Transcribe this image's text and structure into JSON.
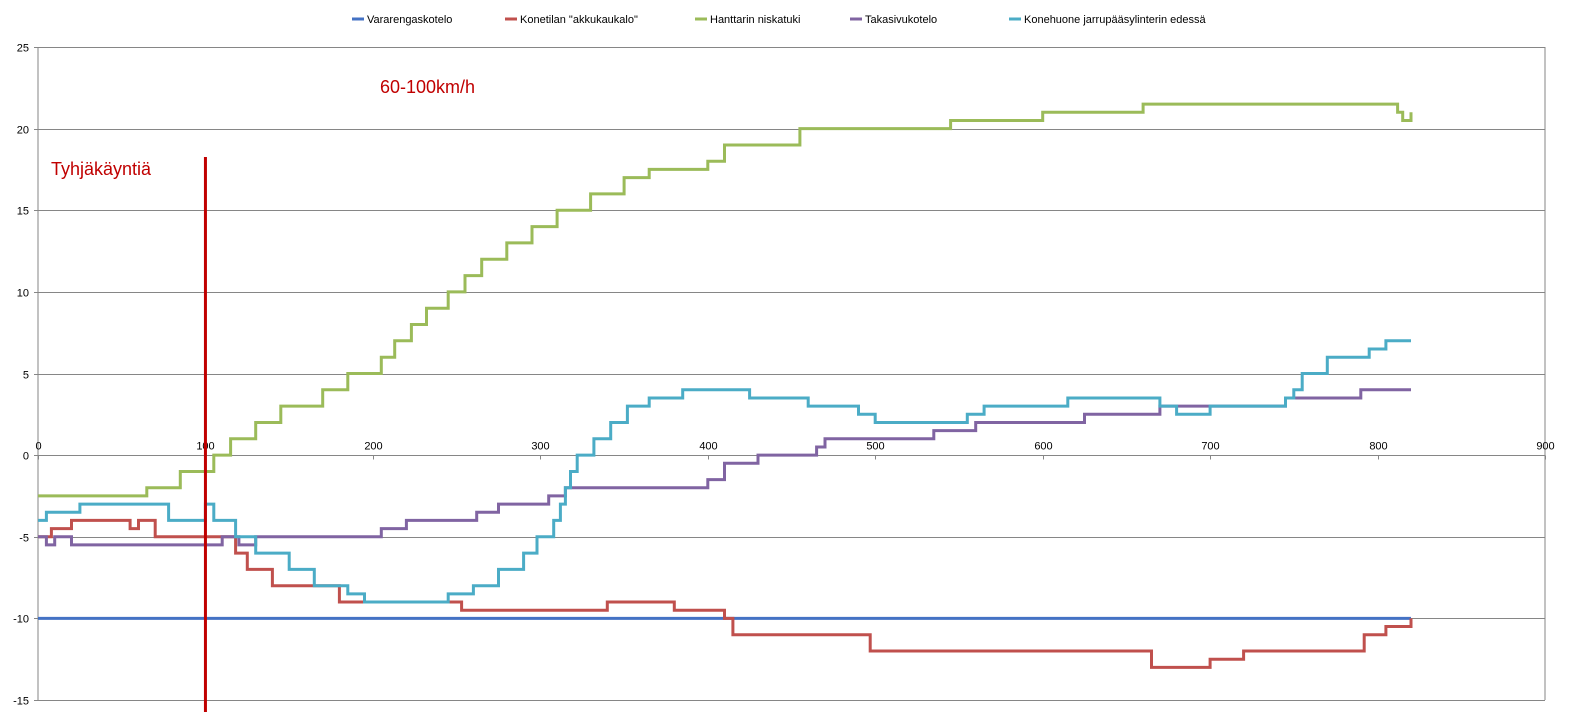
{
  "chart_data": {
    "type": "line",
    "title": "",
    "xlabel": "",
    "ylabel": "",
    "xlim": [
      0,
      900
    ],
    "ylim": [
      -15,
      25
    ],
    "x_ticks": [
      0,
      100,
      200,
      300,
      400,
      500,
      600,
      700,
      800,
      900
    ],
    "y_ticks": [
      -15,
      -10,
      -5,
      0,
      5,
      10,
      15,
      20,
      25
    ],
    "grid": "horizontal",
    "legend_position": "top",
    "annotations": [
      {
        "id": "idle",
        "text": "Tyhjäkäyntiä",
        "color": "#C00000"
      },
      {
        "id": "speed",
        "text": "60-100km/h",
        "color": "#C00000"
      }
    ],
    "vertical_marker": {
      "x": 100,
      "color": "#C00000"
    },
    "series": [
      {
        "name": "Vararengaskotelo",
        "color": "#4472C4",
        "points": [
          [
            0,
            -10
          ],
          [
            820,
            -10
          ]
        ]
      },
      {
        "name": "Konetilan \"akkukaukalo\"",
        "color": "#C0504D",
        "points": [
          [
            0,
            -5
          ],
          [
            5,
            -5
          ],
          [
            8,
            -4.5
          ],
          [
            20,
            -4
          ],
          [
            50,
            -4
          ],
          [
            55,
            -4.5
          ],
          [
            60,
            -4
          ],
          [
            65,
            -4
          ],
          [
            70,
            -5
          ],
          [
            110,
            -5
          ],
          [
            118,
            -6
          ],
          [
            120,
            -6
          ],
          [
            125,
            -7
          ],
          [
            135,
            -7
          ],
          [
            140,
            -8
          ],
          [
            150,
            -8
          ],
          [
            155,
            -8
          ],
          [
            175,
            -8
          ],
          [
            180,
            -9
          ],
          [
            250,
            -9
          ],
          [
            253,
            -9.5
          ],
          [
            320,
            -9.5
          ],
          [
            340,
            -9
          ],
          [
            380,
            -9.5
          ],
          [
            410,
            -10
          ],
          [
            415,
            -11
          ],
          [
            495,
            -11
          ],
          [
            497,
            -12
          ],
          [
            660,
            -12
          ],
          [
            665,
            -13
          ],
          [
            695,
            -13
          ],
          [
            700,
            -12.5
          ],
          [
            720,
            -12
          ],
          [
            790,
            -12
          ],
          [
            792,
            -11
          ],
          [
            805,
            -10.5
          ],
          [
            820,
            -10
          ]
        ]
      },
      {
        "name": "Hanttarin niskatuki",
        "color": "#9BBB59",
        "points": [
          [
            0,
            -2.5
          ],
          [
            60,
            -2.5
          ],
          [
            65,
            -2
          ],
          [
            80,
            -2
          ],
          [
            85,
            -1
          ],
          [
            100,
            -1
          ],
          [
            105,
            0
          ],
          [
            110,
            0
          ],
          [
            115,
            1
          ],
          [
            125,
            1
          ],
          [
            130,
            2
          ],
          [
            140,
            2
          ],
          [
            145,
            3
          ],
          [
            165,
            3
          ],
          [
            170,
            4
          ],
          [
            180,
            4
          ],
          [
            185,
            5
          ],
          [
            200,
            5
          ],
          [
            205,
            6
          ],
          [
            210,
            6
          ],
          [
            213,
            7
          ],
          [
            220,
            7
          ],
          [
            223,
            8
          ],
          [
            228,
            8
          ],
          [
            232,
            9
          ],
          [
            240,
            9
          ],
          [
            245,
            10
          ],
          [
            250,
            10
          ],
          [
            255,
            11
          ],
          [
            260,
            11
          ],
          [
            265,
            12
          ],
          [
            275,
            12
          ],
          [
            280,
            13
          ],
          [
            290,
            13
          ],
          [
            295,
            14
          ],
          [
            305,
            14
          ],
          [
            310,
            15
          ],
          [
            325,
            15
          ],
          [
            330,
            16
          ],
          [
            345,
            16
          ],
          [
            350,
            17
          ],
          [
            360,
            17
          ],
          [
            365,
            17.5
          ],
          [
            400,
            18
          ],
          [
            410,
            19
          ],
          [
            430,
            19
          ],
          [
            435,
            19
          ],
          [
            450,
            19
          ],
          [
            455,
            20
          ],
          [
            475,
            20
          ],
          [
            480,
            20
          ],
          [
            540,
            20
          ],
          [
            545,
            20.5
          ],
          [
            600,
            21
          ],
          [
            630,
            21
          ],
          [
            645,
            21
          ],
          [
            660,
            21.5
          ],
          [
            700,
            21.5
          ],
          [
            800,
            21.5
          ],
          [
            812,
            21
          ],
          [
            815,
            20.5
          ],
          [
            820,
            21
          ]
        ]
      },
      {
        "name": "Takasivukotelo",
        "color": "#8064A2",
        "points": [
          [
            0,
            -5
          ],
          [
            5,
            -5.5
          ],
          [
            10,
            -5
          ],
          [
            20,
            -5.5
          ],
          [
            60,
            -5.5
          ],
          [
            80,
            -5.5
          ],
          [
            110,
            -5
          ],
          [
            120,
            -5.5
          ],
          [
            130,
            -5
          ],
          [
            200,
            -5
          ],
          [
            205,
            -4.5
          ],
          [
            220,
            -4
          ],
          [
            260,
            -4
          ],
          [
            262,
            -3.5
          ],
          [
            275,
            -3
          ],
          [
            300,
            -3
          ],
          [
            305,
            -2.5
          ],
          [
            315,
            -2
          ],
          [
            330,
            -2
          ],
          [
            400,
            -1.5
          ],
          [
            410,
            -0.5
          ],
          [
            420,
            -0.5
          ],
          [
            430,
            0
          ],
          [
            465,
            0.5
          ],
          [
            470,
            1
          ],
          [
            485,
            1
          ],
          [
            490,
            1
          ],
          [
            530,
            1
          ],
          [
            535,
            1.5
          ],
          [
            550,
            1.5
          ],
          [
            560,
            2
          ],
          [
            620,
            2
          ],
          [
            625,
            2.5
          ],
          [
            640,
            2.5
          ],
          [
            660,
            2.5
          ],
          [
            670,
            3
          ],
          [
            740,
            3
          ],
          [
            745,
            3.5
          ],
          [
            780,
            3.5
          ],
          [
            790,
            4
          ],
          [
            820,
            4
          ]
        ]
      },
      {
        "name": "Konehuone jarrupääsylinterin edessä",
        "color": "#4BACC6",
        "points": [
          [
            0,
            -4
          ],
          [
            5,
            -3.5
          ],
          [
            20,
            -3.5
          ],
          [
            25,
            -3
          ],
          [
            75,
            -3
          ],
          [
            78,
            -4
          ],
          [
            95,
            -4
          ],
          [
            100,
            -3
          ],
          [
            105,
            -4
          ],
          [
            115,
            -4
          ],
          [
            118,
            -5
          ],
          [
            125,
            -5
          ],
          [
            130,
            -6
          ],
          [
            145,
            -6
          ],
          [
            150,
            -7
          ],
          [
            160,
            -7
          ],
          [
            165,
            -8
          ],
          [
            180,
            -8
          ],
          [
            185,
            -8.5
          ],
          [
            195,
            -9
          ],
          [
            240,
            -9
          ],
          [
            245,
            -8.5
          ],
          [
            260,
            -8
          ],
          [
            270,
            -8
          ],
          [
            275,
            -7
          ],
          [
            285,
            -7
          ],
          [
            290,
            -6
          ],
          [
            295,
            -6
          ],
          [
            298,
            -5
          ],
          [
            305,
            -5
          ],
          [
            308,
            -4
          ],
          [
            312,
            -3
          ],
          [
            315,
            -2
          ],
          [
            318,
            -1
          ],
          [
            322,
            0
          ],
          [
            328,
            0
          ],
          [
            332,
            1
          ],
          [
            338,
            1
          ],
          [
            342,
            2
          ],
          [
            348,
            2
          ],
          [
            352,
            3
          ],
          [
            360,
            3
          ],
          [
            365,
            3.5
          ],
          [
            380,
            3.5
          ],
          [
            385,
            4
          ],
          [
            420,
            4
          ],
          [
            425,
            3.5
          ],
          [
            440,
            3.5
          ],
          [
            460,
            3
          ],
          [
            490,
            2.5
          ],
          [
            500,
            2
          ],
          [
            550,
            2
          ],
          [
            555,
            2.5
          ],
          [
            565,
            3
          ],
          [
            610,
            3
          ],
          [
            615,
            3.5
          ],
          [
            660,
            3.5
          ],
          [
            670,
            3
          ],
          [
            680,
            2.5
          ],
          [
            700,
            3
          ],
          [
            740,
            3
          ],
          [
            745,
            3.5
          ],
          [
            750,
            4
          ],
          [
            755,
            5
          ],
          [
            765,
            5
          ],
          [
            770,
            6
          ],
          [
            790,
            6
          ],
          [
            795,
            6.5
          ],
          [
            805,
            7
          ],
          [
            820,
            7
          ]
        ]
      }
    ]
  }
}
